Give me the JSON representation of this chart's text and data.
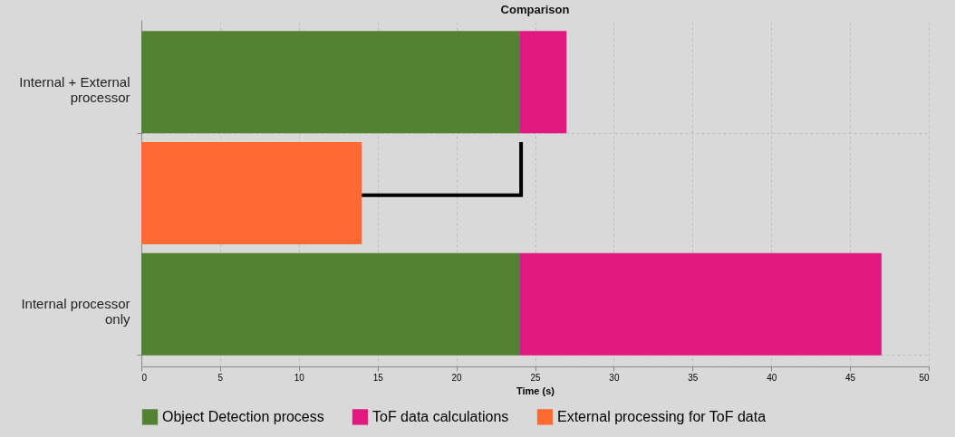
{
  "chart_data": {
    "type": "bar",
    "title": "Comparison",
    "xlabel": "Time (s)",
    "orientation": "horizontal",
    "stacked": true,
    "categories": [
      "Internal + External processor",
      null,
      "Internal processor only"
    ],
    "series": [
      {
        "name": "Object Detection process",
        "color": "#548235",
        "values": [
          24,
          null,
          24
        ]
      },
      {
        "name": "ToF data calculations",
        "color": "#e0197f",
        "values": [
          3,
          null,
          23
        ]
      },
      {
        "name": "External processing for ToF data",
        "color": "#ff6a33",
        "values": [
          null,
          14,
          null
        ]
      }
    ],
    "xlim": [
      0,
      50
    ],
    "xticks": [
      0,
      5,
      10,
      15,
      20,
      25,
      30,
      35,
      40,
      45,
      50
    ],
    "grid": true,
    "legend": "bottom"
  }
}
